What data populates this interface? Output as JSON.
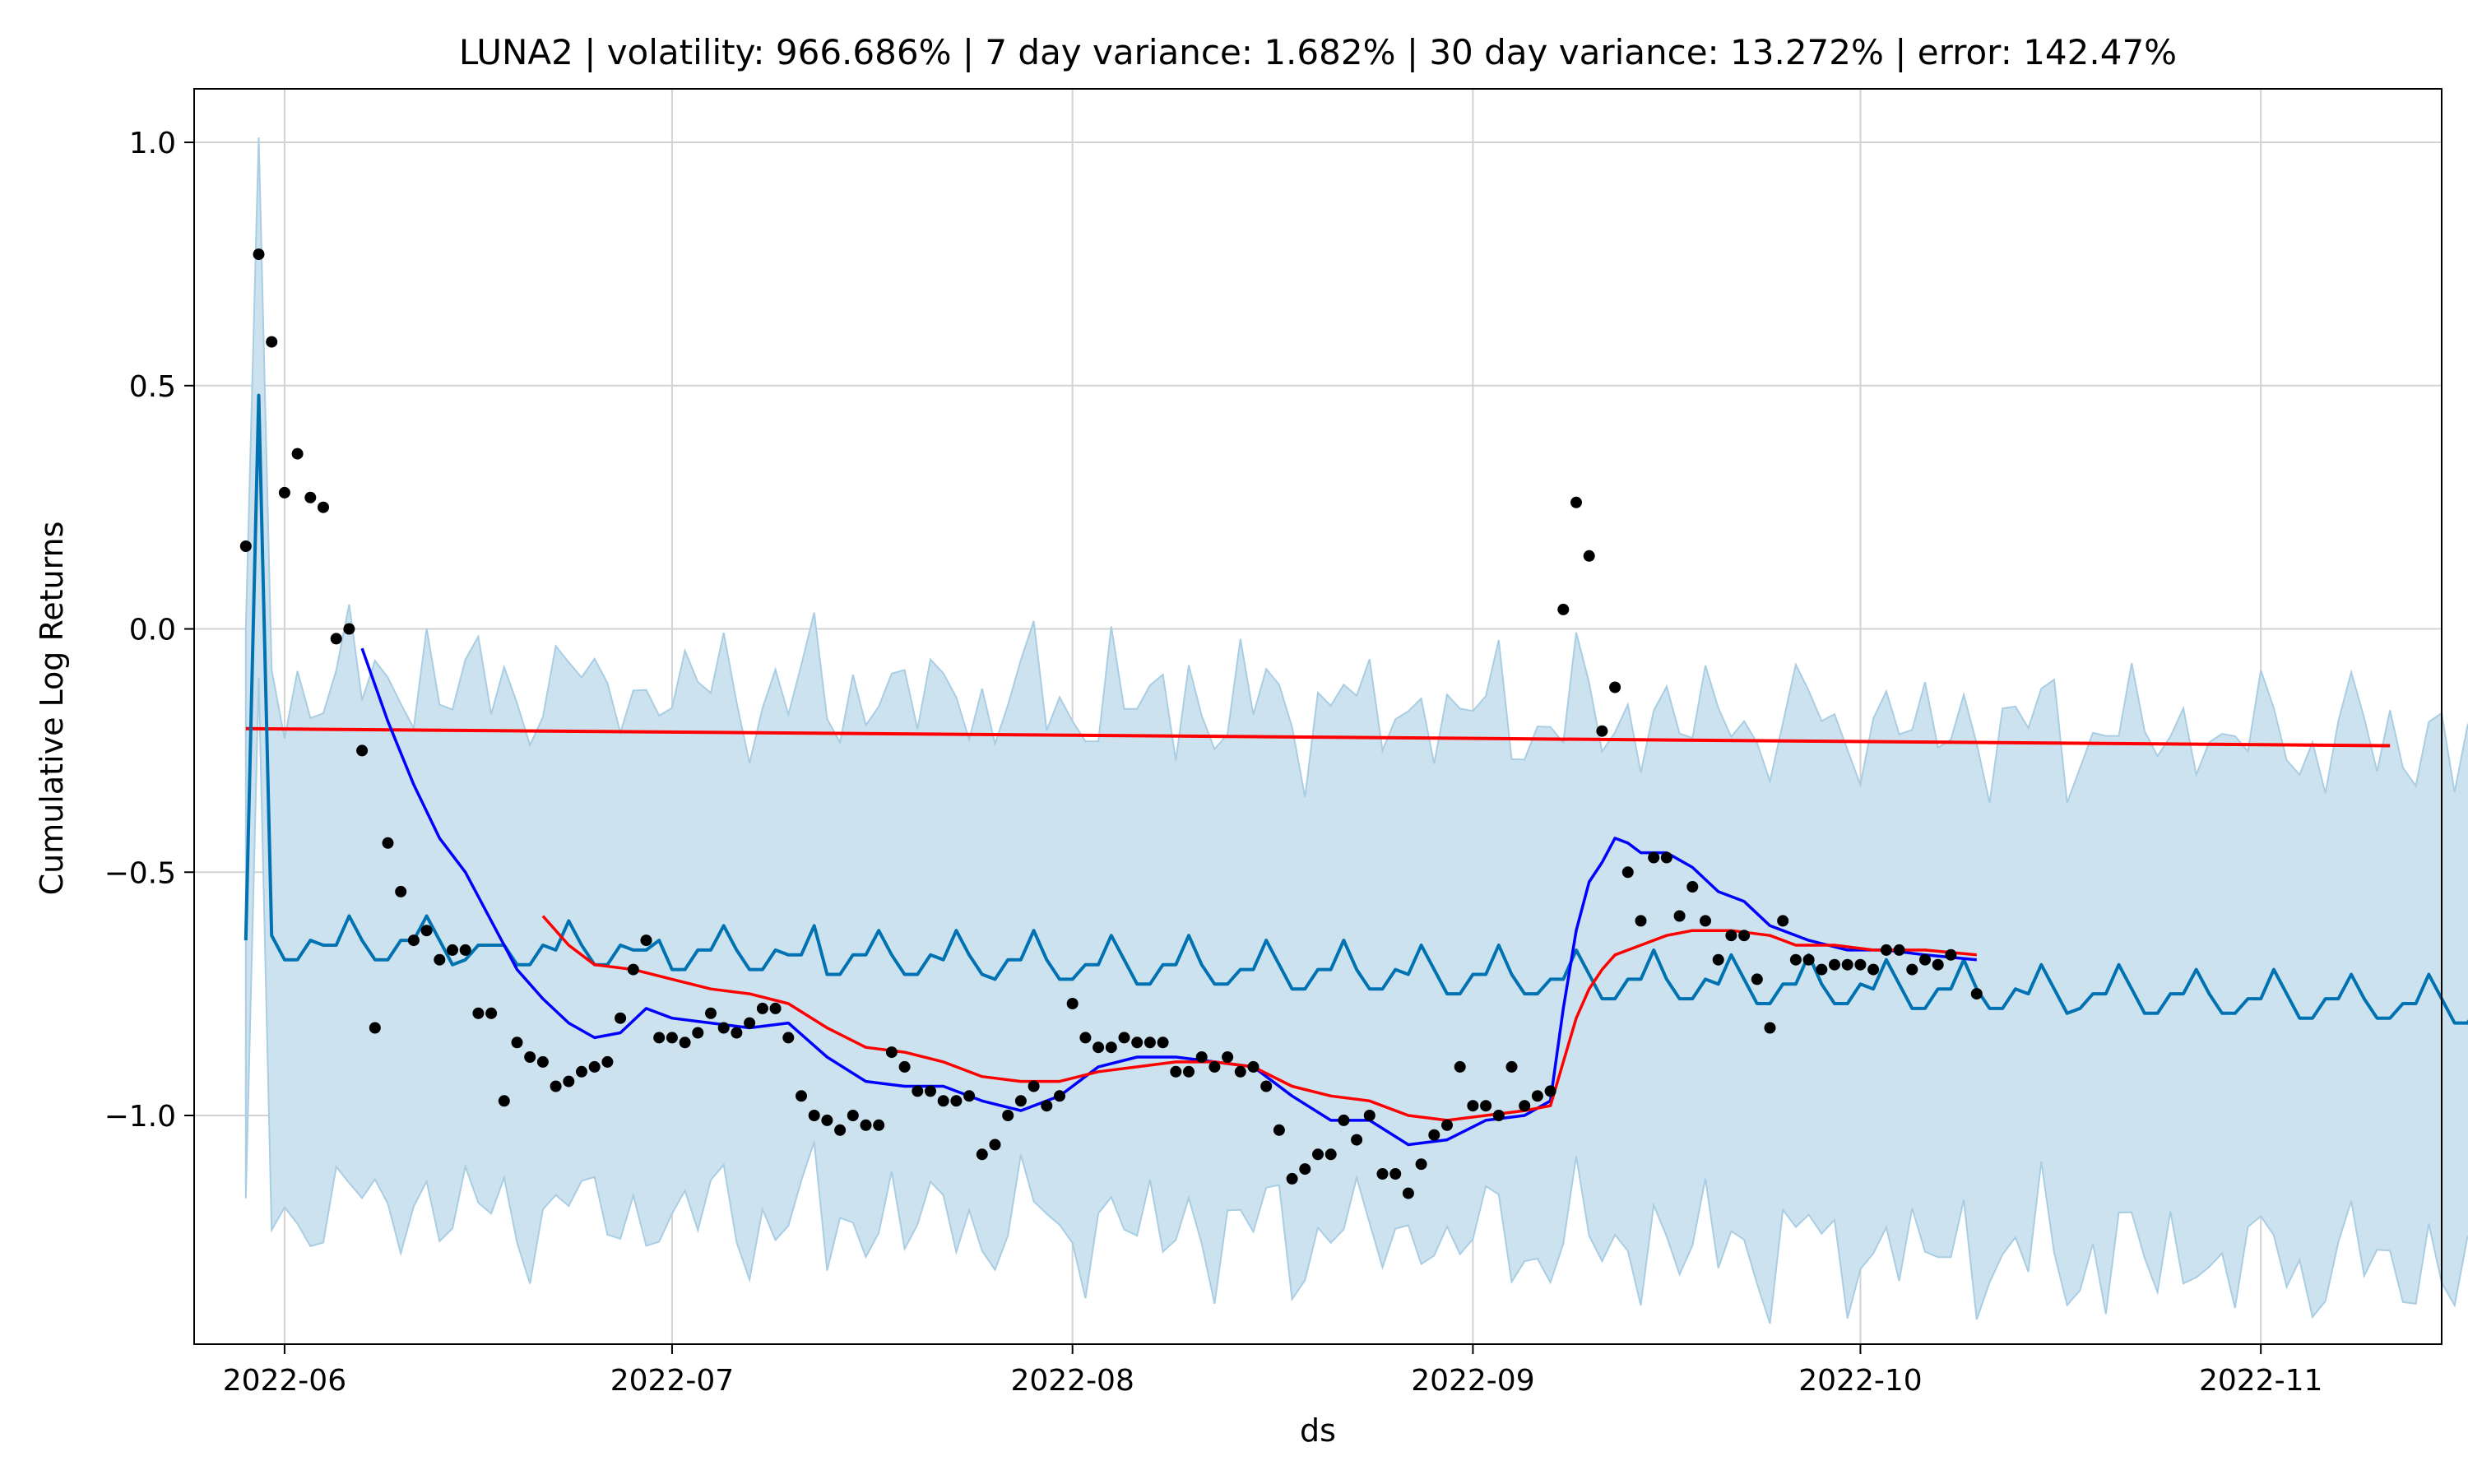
{
  "chart_data": {
    "type": "line",
    "title": "LUNA2 | volatility: 966.686% | 7 day variance: 1.682% | 30 day variance: 13.272% | error: 142.47%",
    "xlabel": "ds",
    "ylabel": "Cumulative Log Returns",
    "x_axis": {
      "type": "date",
      "range": [
        "2022-05-25",
        "2022-11-15"
      ],
      "ticks": [
        "2022-06-01",
        "2022-07-01",
        "2022-08-01",
        "2022-09-01",
        "2022-10-01",
        "2022-11-01"
      ],
      "tick_labels": [
        "2022-06",
        "2022-07",
        "2022-08",
        "2022-09",
        "2022-10",
        "2022-11"
      ]
    },
    "y_axis": {
      "range": [
        -1.47,
        1.11
      ],
      "ticks": [
        1.0,
        0.5,
        0.0,
        -0.5,
        -1.0
      ],
      "tick_labels": [
        "1.0",
        "0.5",
        "0.0",
        "−0.5",
        "−1.0"
      ]
    },
    "grid": true,
    "colors": {
      "forecast": "#0072B2",
      "interval_fill": "#cde2ef",
      "interval_edge": "#a9cde3",
      "trend": "#ff0000",
      "ma_short": "#0000ff",
      "ma_long": "#ff0000",
      "observed": "#000000"
    },
    "observed": [
      [
        "2022-05-29",
        0.17
      ],
      [
        "2022-05-30",
        0.77
      ],
      [
        "2022-05-31",
        0.59
      ],
      [
        "2022-06-01",
        0.28
      ],
      [
        "2022-06-02",
        0.36
      ],
      [
        "2022-06-03",
        0.27
      ],
      [
        "2022-06-04",
        0.25
      ],
      [
        "2022-06-05",
        -0.02
      ],
      [
        "2022-06-06",
        0.0
      ],
      [
        "2022-06-07",
        -0.25
      ],
      [
        "2022-06-08",
        -0.82
      ],
      [
        "2022-06-09",
        -0.44
      ],
      [
        "2022-06-10",
        -0.54
      ],
      [
        "2022-06-11",
        -0.64
      ],
      [
        "2022-06-12",
        -0.62
      ],
      [
        "2022-06-13",
        -0.68
      ],
      [
        "2022-06-14",
        -0.66
      ],
      [
        "2022-06-15",
        -0.66
      ],
      [
        "2022-06-16",
        -0.79
      ],
      [
        "2022-06-17",
        -0.79
      ],
      [
        "2022-06-18",
        -0.97
      ],
      [
        "2022-06-19",
        -0.85
      ],
      [
        "2022-06-20",
        -0.88
      ],
      [
        "2022-06-21",
        -0.89
      ],
      [
        "2022-06-22",
        -0.94
      ],
      [
        "2022-06-23",
        -0.93
      ],
      [
        "2022-06-24",
        -0.91
      ],
      [
        "2022-06-25",
        -0.9
      ],
      [
        "2022-06-26",
        -0.89
      ],
      [
        "2022-06-27",
        -0.8
      ],
      [
        "2022-06-28",
        -0.7
      ],
      [
        "2022-06-29",
        -0.64
      ],
      [
        "2022-06-30",
        -0.84
      ],
      [
        "2022-07-01",
        -0.84
      ],
      [
        "2022-07-02",
        -0.85
      ],
      [
        "2022-07-03",
        -0.83
      ],
      [
        "2022-07-04",
        -0.79
      ],
      [
        "2022-07-05",
        -0.82
      ],
      [
        "2022-07-06",
        -0.83
      ],
      [
        "2022-07-07",
        -0.81
      ],
      [
        "2022-07-08",
        -0.78
      ],
      [
        "2022-07-09",
        -0.78
      ],
      [
        "2022-07-10",
        -0.84
      ],
      [
        "2022-07-11",
        -0.96
      ],
      [
        "2022-07-12",
        -1.0
      ],
      [
        "2022-07-13",
        -1.01
      ],
      [
        "2022-07-14",
        -1.03
      ],
      [
        "2022-07-15",
        -1.0
      ],
      [
        "2022-07-16",
        -1.02
      ],
      [
        "2022-07-17",
        -1.02
      ],
      [
        "2022-07-18",
        -0.87
      ],
      [
        "2022-07-19",
        -0.9
      ],
      [
        "2022-07-20",
        -0.95
      ],
      [
        "2022-07-21",
        -0.95
      ],
      [
        "2022-07-22",
        -0.97
      ],
      [
        "2022-07-23",
        -0.97
      ],
      [
        "2022-07-24",
        -0.96
      ],
      [
        "2022-07-25",
        -1.08
      ],
      [
        "2022-07-26",
        -1.06
      ],
      [
        "2022-07-27",
        -1.0
      ],
      [
        "2022-07-28",
        -0.97
      ],
      [
        "2022-07-29",
        -0.94
      ],
      [
        "2022-07-30",
        -0.98
      ],
      [
        "2022-07-31",
        -0.96
      ],
      [
        "2022-08-01",
        -0.77
      ],
      [
        "2022-08-02",
        -0.84
      ],
      [
        "2022-08-03",
        -0.86
      ],
      [
        "2022-08-04",
        -0.86
      ],
      [
        "2022-08-05",
        -0.84
      ],
      [
        "2022-08-06",
        -0.85
      ],
      [
        "2022-08-07",
        -0.85
      ],
      [
        "2022-08-08",
        -0.85
      ],
      [
        "2022-08-09",
        -0.91
      ],
      [
        "2022-08-10",
        -0.91
      ],
      [
        "2022-08-11",
        -0.88
      ],
      [
        "2022-08-12",
        -0.9
      ],
      [
        "2022-08-13",
        -0.88
      ],
      [
        "2022-08-14",
        -0.91
      ],
      [
        "2022-08-15",
        -0.9
      ],
      [
        "2022-08-16",
        -0.94
      ],
      [
        "2022-08-17",
        -1.03
      ],
      [
        "2022-08-18",
        -1.13
      ],
      [
        "2022-08-19",
        -1.11
      ],
      [
        "2022-08-20",
        -1.08
      ],
      [
        "2022-08-21",
        -1.08
      ],
      [
        "2022-08-22",
        -1.01
      ],
      [
        "2022-08-23",
        -1.05
      ],
      [
        "2022-08-24",
        -1.0
      ],
      [
        "2022-08-25",
        -1.12
      ],
      [
        "2022-08-26",
        -1.12
      ],
      [
        "2022-08-27",
        -1.16
      ],
      [
        "2022-08-28",
        -1.1
      ],
      [
        "2022-08-29",
        -1.04
      ],
      [
        "2022-08-30",
        -1.02
      ],
      [
        "2022-08-31",
        -0.9
      ],
      [
        "2022-09-01",
        -0.98
      ],
      [
        "2022-09-02",
        -0.98
      ],
      [
        "2022-09-03",
        -1.0
      ],
      [
        "2022-09-04",
        -0.9
      ],
      [
        "2022-09-05",
        -0.98
      ],
      [
        "2022-09-06",
        -0.96
      ],
      [
        "2022-09-07",
        -0.95
      ],
      [
        "2022-09-08",
        0.04
      ],
      [
        "2022-09-09",
        0.26
      ],
      [
        "2022-09-10",
        0.15
      ],
      [
        "2022-09-11",
        -0.21
      ],
      [
        "2022-09-12",
        -0.12
      ],
      [
        "2022-09-13",
        -0.5
      ],
      [
        "2022-09-14",
        -0.6
      ],
      [
        "2022-09-15",
        -0.47
      ],
      [
        "2022-09-16",
        -0.47
      ],
      [
        "2022-09-17",
        -0.59
      ],
      [
        "2022-09-18",
        -0.53
      ],
      [
        "2022-09-19",
        -0.6
      ],
      [
        "2022-09-20",
        -0.68
      ],
      [
        "2022-09-21",
        -0.63
      ],
      [
        "2022-09-22",
        -0.63
      ],
      [
        "2022-09-23",
        -0.72
      ],
      [
        "2022-09-24",
        -0.82
      ],
      [
        "2022-09-25",
        -0.6
      ],
      [
        "2022-09-26",
        -0.68
      ],
      [
        "2022-09-27",
        -0.68
      ],
      [
        "2022-09-28",
        -0.7
      ],
      [
        "2022-09-29",
        -0.69
      ],
      [
        "2022-09-30",
        -0.69
      ],
      [
        "2022-10-01",
        -0.69
      ],
      [
        "2022-10-02",
        -0.7
      ],
      [
        "2022-10-03",
        -0.66
      ],
      [
        "2022-10-04",
        -0.66
      ],
      [
        "2022-10-05",
        -0.7
      ],
      [
        "2022-10-06",
        -0.68
      ],
      [
        "2022-10-07",
        -0.69
      ],
      [
        "2022-10-08",
        -0.67
      ],
      [
        "2022-10-10",
        -0.75
      ]
    ],
    "forecast_start": "2022-05-29",
    "forecast_values": [
      -0.64,
      0.48,
      -0.63,
      -0.68,
      -0.68,
      -0.64,
      -0.65,
      -0.65,
      -0.59,
      -0.64,
      -0.68,
      -0.68,
      -0.64,
      -0.64,
      -0.59,
      -0.64,
      -0.69,
      -0.68,
      -0.65,
      -0.65,
      -0.65,
      -0.69,
      -0.69,
      -0.65,
      -0.66,
      -0.6,
      -0.65,
      -0.69,
      -0.69,
      -0.65,
      -0.66,
      -0.66,
      -0.64,
      -0.7,
      -0.7,
      -0.66,
      -0.66,
      -0.61,
      -0.66,
      -0.7,
      -0.7,
      -0.66,
      -0.67,
      -0.67,
      -0.61,
      -0.71,
      -0.71,
      -0.67,
      -0.67,
      -0.62,
      -0.67,
      -0.71,
      -0.71,
      -0.67,
      -0.68,
      -0.62,
      -0.67,
      -0.71,
      -0.72,
      -0.68,
      -0.68,
      -0.62,
      -0.68,
      -0.72,
      -0.72,
      -0.69,
      -0.69,
      -0.63,
      -0.68,
      -0.73,
      -0.73,
      -0.69,
      -0.69,
      -0.63,
      -0.69,
      -0.73,
      -0.73,
      -0.7,
      -0.7,
      -0.64,
      -0.69,
      -0.74,
      -0.74,
      -0.7,
      -0.7,
      -0.64,
      -0.7,
      -0.74,
      -0.74,
      -0.7,
      -0.71,
      -0.65,
      -0.7,
      -0.75,
      -0.75,
      -0.71,
      -0.71,
      -0.65,
      -0.71,
      -0.75,
      -0.75,
      -0.72,
      -0.72,
      -0.66,
      -0.71,
      -0.76,
      -0.76,
      -0.72,
      -0.72,
      -0.66,
      -0.72,
      -0.76,
      -0.76,
      -0.72,
      -0.73,
      -0.67,
      -0.72,
      -0.77,
      -0.77,
      -0.73,
      -0.73,
      -0.67,
      -0.73,
      -0.77,
      -0.77,
      -0.73,
      -0.74,
      -0.68,
      -0.73,
      -0.78,
      -0.78,
      -0.74,
      -0.74,
      -0.68,
      -0.74,
      -0.78,
      -0.78,
      -0.74,
      -0.75,
      -0.69,
      -0.74,
      -0.79,
      -0.78,
      -0.75,
      -0.75,
      -0.69,
      -0.74,
      -0.79,
      -0.79,
      -0.75,
      -0.75,
      -0.7,
      -0.75,
      -0.79,
      -0.79,
      -0.76,
      -0.76,
      -0.7,
      -0.75,
      -0.8,
      -0.8,
      -0.76,
      -0.76,
      -0.71,
      -0.76,
      -0.8,
      -0.8,
      -0.77,
      -0.77,
      -0.71,
      -0.76,
      -0.81,
      -0.81,
      -0.77,
      -0.77,
      -0.72,
      -0.73
    ],
    "interval_half_width": 0.54,
    "interval_first_day": [
      -1.17,
      0.0
    ],
    "interval_second_day": [
      -0.1,
      1.01
    ],
    "trend": [
      [
        "2022-05-29",
        -0.205
      ],
      [
        "2022-11-11",
        -0.24
      ]
    ],
    "moving_average_short": [
      [
        "2022-06-07",
        -0.04
      ],
      [
        "2022-06-09",
        -0.19
      ],
      [
        "2022-06-11",
        -0.32
      ],
      [
        "2022-06-13",
        -0.43
      ],
      [
        "2022-06-15",
        -0.5
      ],
      [
        "2022-06-17",
        -0.6
      ],
      [
        "2022-06-19",
        -0.7
      ],
      [
        "2022-06-21",
        -0.76
      ],
      [
        "2022-06-23",
        -0.81
      ],
      [
        "2022-06-25",
        -0.84
      ],
      [
        "2022-06-27",
        -0.83
      ],
      [
        "2022-06-29",
        -0.78
      ],
      [
        "2022-07-01",
        -0.8
      ],
      [
        "2022-07-04",
        -0.81
      ],
      [
        "2022-07-07",
        -0.82
      ],
      [
        "2022-07-10",
        -0.81
      ],
      [
        "2022-07-13",
        -0.88
      ],
      [
        "2022-07-16",
        -0.93
      ],
      [
        "2022-07-19",
        -0.94
      ],
      [
        "2022-07-22",
        -0.94
      ],
      [
        "2022-07-25",
        -0.97
      ],
      [
        "2022-07-28",
        -0.99
      ],
      [
        "2022-07-31",
        -0.96
      ],
      [
        "2022-08-03",
        -0.9
      ],
      [
        "2022-08-06",
        -0.88
      ],
      [
        "2022-08-09",
        -0.88
      ],
      [
        "2022-08-12",
        -0.89
      ],
      [
        "2022-08-15",
        -0.9
      ],
      [
        "2022-08-18",
        -0.96
      ],
      [
        "2022-08-21",
        -1.01
      ],
      [
        "2022-08-24",
        -1.01
      ],
      [
        "2022-08-27",
        -1.06
      ],
      [
        "2022-08-30",
        -1.05
      ],
      [
        "2022-09-02",
        -1.01
      ],
      [
        "2022-09-05",
        -1.0
      ],
      [
        "2022-09-07",
        -0.97
      ],
      [
        "2022-09-08",
        -0.78
      ],
      [
        "2022-09-09",
        -0.62
      ],
      [
        "2022-09-10",
        -0.52
      ],
      [
        "2022-09-11",
        -0.48
      ],
      [
        "2022-09-12",
        -0.43
      ],
      [
        "2022-09-13",
        -0.44
      ],
      [
        "2022-09-14",
        -0.46
      ],
      [
        "2022-09-16",
        -0.46
      ],
      [
        "2022-09-18",
        -0.49
      ],
      [
        "2022-09-20",
        -0.54
      ],
      [
        "2022-09-22",
        -0.56
      ],
      [
        "2022-09-24",
        -0.61
      ],
      [
        "2022-09-27",
        -0.64
      ],
      [
        "2022-09-30",
        -0.66
      ],
      [
        "2022-10-03",
        -0.66
      ],
      [
        "2022-10-06",
        -0.67
      ],
      [
        "2022-10-10",
        -0.68
      ]
    ],
    "moving_average_long": [
      [
        "2022-06-21",
        -0.59
      ],
      [
        "2022-06-23",
        -0.65
      ],
      [
        "2022-06-25",
        -0.69
      ],
      [
        "2022-06-28",
        -0.7
      ],
      [
        "2022-07-01",
        -0.72
      ],
      [
        "2022-07-04",
        -0.74
      ],
      [
        "2022-07-07",
        -0.75
      ],
      [
        "2022-07-10",
        -0.77
      ],
      [
        "2022-07-13",
        -0.82
      ],
      [
        "2022-07-16",
        -0.86
      ],
      [
        "2022-07-19",
        -0.87
      ],
      [
        "2022-07-22",
        -0.89
      ],
      [
        "2022-07-25",
        -0.92
      ],
      [
        "2022-07-28",
        -0.93
      ],
      [
        "2022-07-31",
        -0.93
      ],
      [
        "2022-08-03",
        -0.91
      ],
      [
        "2022-08-06",
        -0.9
      ],
      [
        "2022-08-09",
        -0.89
      ],
      [
        "2022-08-12",
        -0.89
      ],
      [
        "2022-08-15",
        -0.9
      ],
      [
        "2022-08-18",
        -0.94
      ],
      [
        "2022-08-21",
        -0.96
      ],
      [
        "2022-08-24",
        -0.97
      ],
      [
        "2022-08-27",
        -1.0
      ],
      [
        "2022-08-30",
        -1.01
      ],
      [
        "2022-09-02",
        -1.0
      ],
      [
        "2022-09-05",
        -0.99
      ],
      [
        "2022-09-07",
        -0.98
      ],
      [
        "2022-09-08",
        -0.89
      ],
      [
        "2022-09-09",
        -0.8
      ],
      [
        "2022-09-10",
        -0.74
      ],
      [
        "2022-09-11",
        -0.7
      ],
      [
        "2022-09-12",
        -0.67
      ],
      [
        "2022-09-14",
        -0.65
      ],
      [
        "2022-09-16",
        -0.63
      ],
      [
        "2022-09-18",
        -0.62
      ],
      [
        "2022-09-21",
        -0.62
      ],
      [
        "2022-09-24",
        -0.63
      ],
      [
        "2022-09-26",
        -0.65
      ],
      [
        "2022-09-29",
        -0.65
      ],
      [
        "2022-10-02",
        -0.66
      ],
      [
        "2022-10-06",
        -0.66
      ],
      [
        "2022-10-10",
        -0.67
      ]
    ]
  }
}
